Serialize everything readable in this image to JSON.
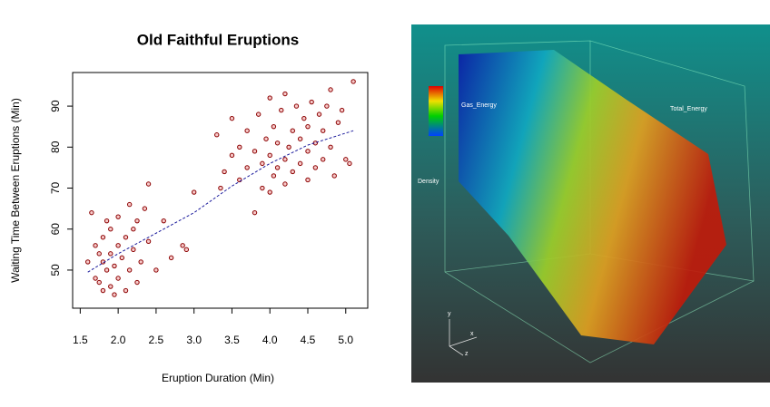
{
  "chart_data": {
    "type": "scatter",
    "title": "Old Faithful Eruptions",
    "x_label": "Eruption Duration (Min)",
    "y_label": "Waiting Time Between Eruptions (Min)",
    "x": [
      1.6,
      1.65,
      1.7,
      1.7,
      1.75,
      1.75,
      1.8,
      1.8,
      1.8,
      1.85,
      1.85,
      1.9,
      1.9,
      1.9,
      1.95,
      1.95,
      2.0,
      2.0,
      2.0,
      2.05,
      2.1,
      2.1,
      2.15,
      2.15,
      2.2,
      2.2,
      2.25,
      2.25,
      2.3,
      2.35,
      2.4,
      2.4,
      2.5,
      2.6,
      2.7,
      2.85,
      2.9,
      3.0,
      3.3,
      3.35,
      3.4,
      3.5,
      3.5,
      3.6,
      3.6,
      3.7,
      3.7,
      3.8,
      3.8,
      3.85,
      3.9,
      3.9,
      3.95,
      4.0,
      4.0,
      4.0,
      4.05,
      4.05,
      4.1,
      4.1,
      4.15,
      4.2,
      4.2,
      4.2,
      4.25,
      4.3,
      4.3,
      4.35,
      4.4,
      4.4,
      4.45,
      4.5,
      4.5,
      4.5,
      4.55,
      4.6,
      4.6,
      4.65,
      4.7,
      4.7,
      4.75,
      4.8,
      4.8,
      4.85,
      4.9,
      4.95,
      5.0,
      5.05,
      5.1
    ],
    "values": [
      52,
      64,
      48,
      56,
      47,
      54,
      45,
      52,
      58,
      50,
      62,
      46,
      54,
      60,
      44,
      51,
      48,
      56,
      63,
      53,
      45,
      58,
      50,
      66,
      55,
      60,
      47,
      62,
      52,
      65,
      57,
      71,
      50,
      62,
      53,
      56,
      55,
      69,
      83,
      70,
      74,
      78,
      87,
      72,
      80,
      75,
      84,
      64,
      79,
      88,
      70,
      76,
      82,
      69,
      78,
      92,
      73,
      85,
      75,
      81,
      89,
      71,
      77,
      93,
      80,
      74,
      84,
      90,
      76,
      82,
      87,
      72,
      79,
      85,
      91,
      75,
      81,
      88,
      77,
      84,
      90,
      80,
      94,
      73,
      86,
      89,
      77,
      76,
      96
    ],
    "color": "#8b0000",
    "trend": {
      "x": [
        1.6,
        2.0,
        2.5,
        3.0,
        3.5,
        4.0,
        4.5,
        5.1
      ],
      "values": [
        49.5,
        54,
        59,
        64,
        70.5,
        76,
        80.5,
        84
      ],
      "color": "#1a1a9c"
    },
    "xlim": [
      1.4,
      5.29
    ],
    "ylim": [
      40.7,
      98.2
    ],
    "xticks": [
      {
        "value": 1.5,
        "label": "1.5"
      },
      {
        "value": 2,
        "label": "2.0"
      },
      {
        "value": 2.5,
        "label": "2.5"
      },
      {
        "value": 3,
        "label": "3.0"
      },
      {
        "value": 3.5,
        "label": "3.5"
      },
      {
        "value": 4,
        "label": "4.0"
      },
      {
        "value": 4.5,
        "label": "4.5"
      },
      {
        "value": 5,
        "label": "5.0"
      }
    ],
    "yticks": [
      50,
      60,
      70,
      80,
      90
    ]
  },
  "render": {
    "labels": {
      "gas": "Gas_Energy",
      "total": "Total_Energy",
      "density": "Density",
      "ay": "y",
      "ax": "x",
      "az": "z"
    }
  }
}
